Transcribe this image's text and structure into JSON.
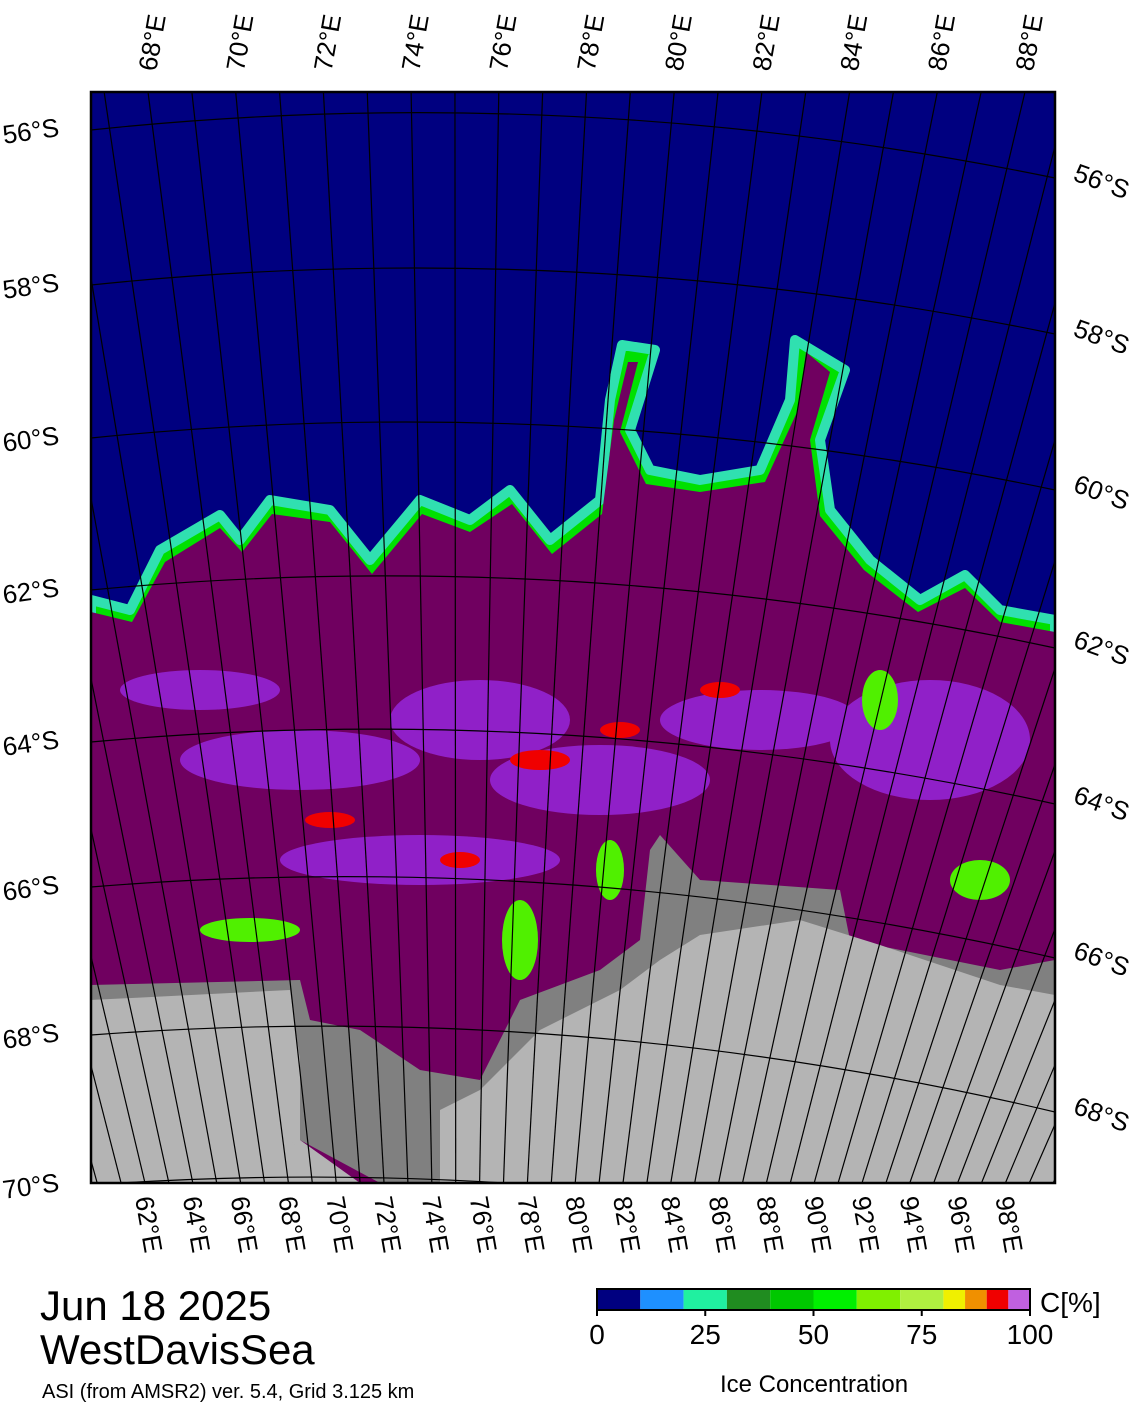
{
  "title": "Jun 18 2025",
  "region": "WestDavisSea",
  "credit": "ASI (from AMSR2) ver. 5.4,  Grid 3.125 km",
  "map": {
    "top_labels": [
      "68°E",
      "70°E",
      "72°E",
      "74°E",
      "76°E",
      "78°E",
      "80°E",
      "82°E",
      "84°E",
      "86°E",
      "88°E"
    ],
    "bottom_labels": [
      "62°E",
      "64°E",
      "66°E",
      "68°E",
      "70°E",
      "72°E",
      "74°E",
      "76°E",
      "78°E",
      "80°E",
      "82°E",
      "84°E",
      "86°E",
      "88°E",
      "90°E",
      "92°E",
      "94°E",
      "96°E",
      "98°E"
    ],
    "left_labels": [
      "56°S",
      "58°S",
      "60°S",
      "62°S",
      "64°S",
      "66°S",
      "68°S",
      "70°S"
    ],
    "right_labels": [
      "56°S",
      "58°S",
      "60°S",
      "62°S",
      "64°S",
      "66°S",
      "68°S"
    ]
  },
  "colorbar": {
    "unit_label": "C[%]",
    "label": "Ice Concentration",
    "lim": [
      0,
      100
    ],
    "ticks": [
      0,
      25,
      50,
      75,
      100
    ],
    "bounds": [
      0,
      10,
      20,
      30,
      40,
      50,
      60,
      70,
      80,
      85,
      90,
      95,
      100
    ],
    "colors": [
      "#000080",
      "#1e90ff",
      "#20f0a0",
      "#208c20",
      "#00c800",
      "#00f000",
      "#80f000",
      "#b0f040",
      "#f0f000",
      "#f09000",
      "#f00000",
      "#c060e0",
      "#9010c0"
    ]
  }
}
